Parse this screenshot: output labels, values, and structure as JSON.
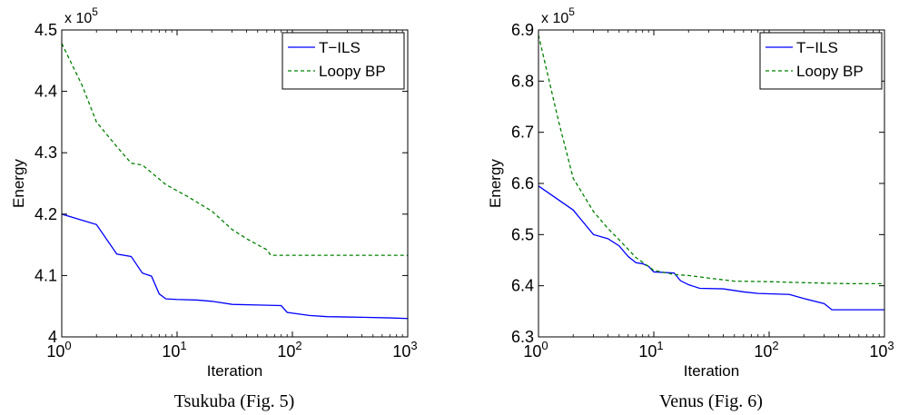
{
  "chart_data": [
    {
      "type": "line",
      "caption": "Tsukuba (Fig. 5)",
      "xlabel": "Iteration",
      "ylabel": "Energy",
      "x_scale": "log",
      "xlim": [
        1,
        1000
      ],
      "ylim": [
        400000,
        450000
      ],
      "y_multiplier_label": {
        "base": "x 10",
        "exp": "5"
      },
      "x_ticks": [
        {
          "base": "10",
          "exp": "0"
        },
        {
          "base": "10",
          "exp": "1"
        },
        {
          "base": "10",
          "exp": "2"
        },
        {
          "base": "10",
          "exp": "3"
        }
      ],
      "y_ticks": [
        "4",
        "4.1",
        "4.2",
        "4.3",
        "4.4",
        "4.5"
      ],
      "y_tick_values": [
        400000,
        410000,
        420000,
        430000,
        440000,
        450000
      ],
      "legend_position": "top-right",
      "series": [
        {
          "name": "T−ILS",
          "color": "#0000ff",
          "dash": "solid",
          "points": [
            [
              1,
              420000
            ],
            [
              2,
              418300
            ],
            [
              3,
              413500
            ],
            [
              4,
              413100
            ],
            [
              5,
              410400
            ],
            [
              6,
              409900
            ],
            [
              7,
              407000
            ],
            [
              8,
              406200
            ],
            [
              10,
              406100
            ],
            [
              15,
              406000
            ],
            [
              20,
              405800
            ],
            [
              30,
              405300
            ],
            [
              50,
              405200
            ],
            [
              80,
              405100
            ],
            [
              90,
              404000
            ],
            [
              140,
              403500
            ],
            [
              200,
              403300
            ],
            [
              400,
              403200
            ],
            [
              700,
              403100
            ],
            [
              1000,
              403000
            ]
          ]
        },
        {
          "name": "Loopy BP",
          "color": "#008000",
          "dash": "dashed",
          "points": [
            [
              1,
              447800
            ],
            [
              1.5,
              441000
            ],
            [
              2,
              435000
            ],
            [
              3,
              431000
            ],
            [
              4,
              428300
            ],
            [
              5,
              428000
            ],
            [
              8,
              424800
            ],
            [
              12,
              423000
            ],
            [
              20,
              420500
            ],
            [
              30,
              417500
            ],
            [
              40,
              416000
            ],
            [
              50,
              415000
            ],
            [
              60,
              414200
            ],
            [
              65,
              413300
            ],
            [
              100,
              413300
            ],
            [
              1000,
              413300
            ]
          ]
        }
      ]
    },
    {
      "type": "line",
      "caption": "Venus (Fig. 6)",
      "xlabel": "Iteration",
      "ylabel": "Energy",
      "x_scale": "log",
      "xlim": [
        1,
        1000
      ],
      "ylim": [
        630000,
        690000
      ],
      "y_multiplier_label": {
        "base": "x 10",
        "exp": "5"
      },
      "x_ticks": [
        {
          "base": "10",
          "exp": "0"
        },
        {
          "base": "10",
          "exp": "1"
        },
        {
          "base": "10",
          "exp": "2"
        },
        {
          "base": "10",
          "exp": "3"
        }
      ],
      "y_ticks": [
        "6.3",
        "6.4",
        "6.5",
        "6.6",
        "6.7",
        "6.8",
        "6.9"
      ],
      "y_tick_values": [
        630000,
        640000,
        650000,
        660000,
        670000,
        680000,
        690000
      ],
      "legend_position": "top-right",
      "series": [
        {
          "name": "T−ILS",
          "color": "#0000ff",
          "dash": "solid",
          "points": [
            [
              1,
              659500
            ],
            [
              2,
              654800
            ],
            [
              3,
              650000
            ],
            [
              4,
              649200
            ],
            [
              5,
              647800
            ],
            [
              6,
              645700
            ],
            [
              7,
              644500
            ],
            [
              8,
              644300
            ],
            [
              9,
              643800
            ],
            [
              10,
              642700
            ],
            [
              15,
              642500
            ],
            [
              17,
              641000
            ],
            [
              20,
              640200
            ],
            [
              25,
              639500
            ],
            [
              40,
              639400
            ],
            [
              60,
              638800
            ],
            [
              80,
              638500
            ],
            [
              150,
              638300
            ],
            [
              200,
              637500
            ],
            [
              300,
              636500
            ],
            [
              350,
              635300
            ],
            [
              500,
              635300
            ],
            [
              1000,
              635300
            ]
          ]
        },
        {
          "name": "Loopy BP",
          "color": "#008000",
          "dash": "dashed",
          "points": [
            [
              1,
              689000
            ],
            [
              1.5,
              672000
            ],
            [
              2,
              661000
            ],
            [
              3,
              654500
            ],
            [
              4,
              651200
            ],
            [
              5,
              649000
            ],
            [
              7,
              645500
            ],
            [
              8,
              644600
            ],
            [
              10,
              643000
            ],
            [
              15,
              642200
            ],
            [
              20,
              642000
            ],
            [
              30,
              641500
            ],
            [
              50,
              640900
            ],
            [
              100,
              640800
            ],
            [
              200,
              640600
            ],
            [
              500,
              640400
            ],
            [
              1000,
              640400
            ]
          ]
        }
      ]
    }
  ]
}
